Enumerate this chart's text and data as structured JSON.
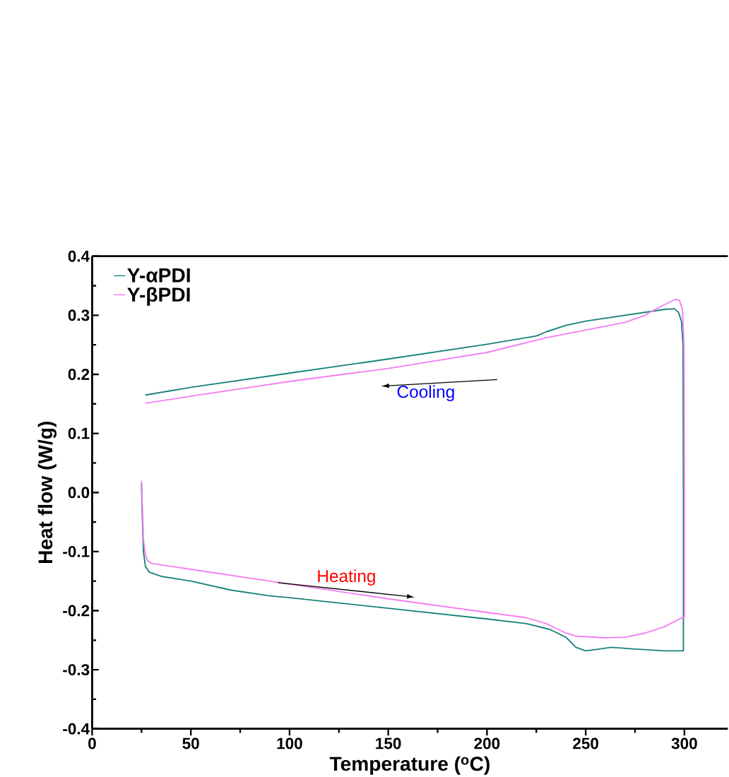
{
  "chart_data": {
    "type": "line",
    "xlabel": "Temperature ($^{o}$C)",
    "ylabel": "Heat flow (W/g)",
    "xlim": [
      0,
      322
    ],
    "xticks": [
      0,
      50,
      100,
      150,
      200,
      250,
      300
    ],
    "ylim": [
      -0.4,
      0.4
    ],
    "yticks": [
      -0.4,
      -0.3,
      -0.2,
      -0.1,
      {
        "value": 0,
        "label": "0.0"
      },
      0.1,
      0.2,
      0.3,
      0.4
    ],
    "legend": "top left",
    "grid": false,
    "marker": "none",
    "line_style": "solid",
    "annotations": [
      "Cooling",
      "Heating"
    ],
    "series": [
      {
        "name": "Y-αPDI",
        "color": "#17837a",
        "x": [
          25,
          25.5,
          26,
          27,
          29,
          35,
          50,
          70,
          90,
          100,
          125,
          150,
          175,
          200,
          220,
          232,
          240,
          245,
          250,
          255,
          263,
          275,
          290,
          299.5,
          299.5,
          299.3,
          298.5,
          297,
          295,
          290,
          270,
          250,
          240,
          230,
          225,
          200,
          150,
          100,
          50,
          27
        ],
        "values": [
          0.015,
          -0.05,
          -0.1,
          -0.125,
          -0.135,
          -0.142,
          -0.15,
          -0.165,
          -0.175,
          -0.178,
          -0.187,
          -0.196,
          -0.205,
          -0.214,
          -0.222,
          -0.232,
          -0.245,
          -0.262,
          -0.268,
          -0.266,
          -0.262,
          -0.265,
          -0.268,
          -0.268,
          0.0,
          0.25,
          0.29,
          0.305,
          0.311,
          0.31,
          0.3,
          0.29,
          0.283,
          0.272,
          0.265,
          0.251,
          0.226,
          0.202,
          0.178,
          0.165
        ]
      },
      {
        "name": "Y-βPDI",
        "color": "#f47ef0",
        "x": [
          25,
          25.5,
          26,
          27,
          28,
          30,
          50,
          100,
          150,
          200,
          220,
          230,
          240,
          245,
          260,
          270,
          280,
          290,
          300,
          300,
          299.8,
          299,
          297.5,
          295.5,
          290,
          283,
          280,
          270,
          250,
          230,
          200,
          150,
          100,
          50,
          27
        ],
        "values": [
          0.02,
          -0.03,
          -0.08,
          -0.105,
          -0.115,
          -0.12,
          -0.13,
          -0.155,
          -0.18,
          -0.203,
          -0.212,
          -0.222,
          -0.238,
          -0.243,
          -0.246,
          -0.245,
          -0.238,
          -0.227,
          -0.21,
          0.0,
          0.25,
          0.31,
          0.325,
          0.327,
          0.318,
          0.306,
          0.3,
          0.288,
          0.275,
          0.262,
          0.237,
          0.21,
          0.188,
          0.163,
          0.151
        ]
      }
    ]
  }
}
